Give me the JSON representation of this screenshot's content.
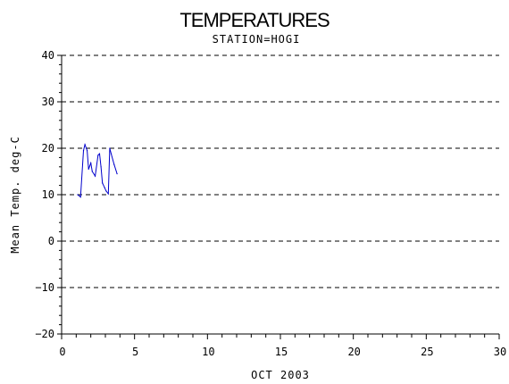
{
  "chart_data": {
    "type": "line",
    "title": "TEMPERATURES",
    "subtitle": "STATION=HOGI",
    "xlabel": "OCT 2003",
    "ylabel": "Mean Temp. deg-C",
    "xlim": [
      0,
      30
    ],
    "ylim": [
      -20,
      40
    ],
    "x_ticks": [
      0,
      5,
      10,
      15,
      20,
      25,
      30
    ],
    "y_ticks": [
      -20,
      -10,
      0,
      10,
      20,
      30,
      40
    ],
    "grid": "horizontal-dashed",
    "legend": "none",
    "line_color": "#0000cc",
    "series": [
      {
        "x": [
          1.1,
          1.3,
          1.5,
          1.6,
          1.75,
          1.85,
          2.0,
          2.1,
          2.3,
          2.5,
          2.6,
          2.7,
          2.8,
          2.95,
          3.05,
          3.2,
          3.3,
          3.4,
          3.6,
          3.8
        ],
        "values": [
          10.0,
          9.5,
          19.5,
          20.8,
          19.5,
          15.5,
          16.8,
          15.0,
          14.0,
          18.5,
          18.8,
          16.0,
          12.5,
          11.5,
          10.8,
          10.2,
          20.0,
          18.8,
          16.5,
          14.5
        ]
      }
    ]
  }
}
